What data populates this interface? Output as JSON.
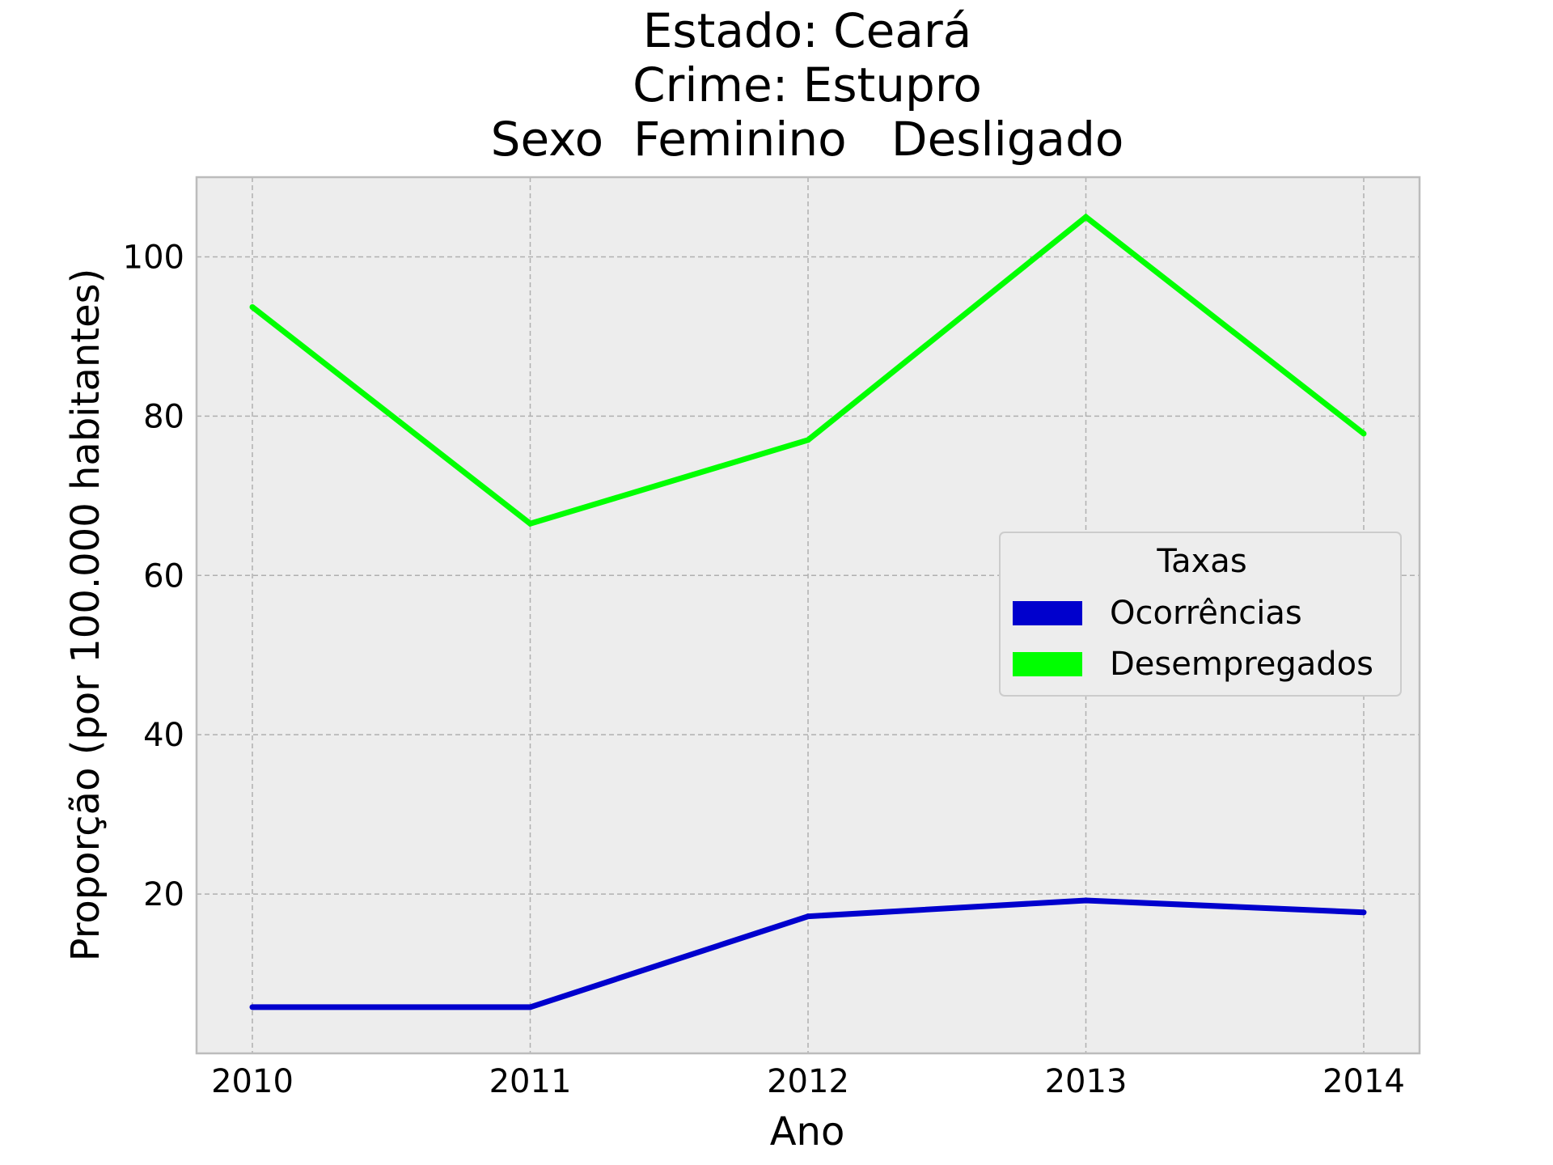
{
  "chart_data": {
    "type": "line",
    "title_lines": [
      "Estado: Ceará",
      "Crime: Estupro",
      "Sexo  Feminino   Desligado"
    ],
    "xlabel": "Ano",
    "ylabel": "Proporção (por 100.000 habitantes)",
    "categories": [
      "2010",
      "2011",
      "2012",
      "2013",
      "2014"
    ],
    "yticks": [
      "20",
      "40",
      "60",
      "80",
      "100"
    ],
    "ylim": [
      0,
      110
    ],
    "grid": true,
    "legend_position": "center-right",
    "legend_title": "Taxas",
    "series": [
      {
        "name": "Ocorrências",
        "color": "#0000cd",
        "values": [
          5.8,
          5.8,
          17.2,
          19.2,
          17.7
        ]
      },
      {
        "name": "Desempregados",
        "color": "#00ff00",
        "values": [
          93.7,
          66.5,
          77.0,
          105.0,
          77.8
        ]
      }
    ]
  }
}
